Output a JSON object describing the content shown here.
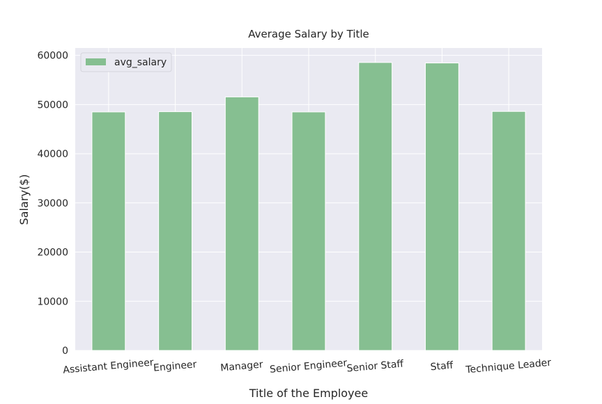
{
  "chart_data": {
    "type": "bar",
    "title": "Average Salary by Title",
    "xlabel": "Title of the Employee",
    "ylabel": "Salary($)",
    "categories": [
      "Assistant Engineer",
      "Engineer",
      "Manager",
      "Senior Engineer",
      "Senior Staff",
      "Staff",
      "Technique Leader"
    ],
    "series": [
      {
        "name": "avg_salary",
        "values": [
          48500,
          48550,
          51550,
          48500,
          58550,
          58450,
          48600
        ],
        "color": "#86bf91"
      }
    ],
    "ylim": [
      0,
      61500
    ],
    "yticks": [
      0,
      10000,
      20000,
      30000,
      40000,
      50000,
      60000
    ],
    "grid": true,
    "legend_position": "top-left",
    "background_color": "#eaeaf2",
    "grid_color": "#ffffff"
  }
}
